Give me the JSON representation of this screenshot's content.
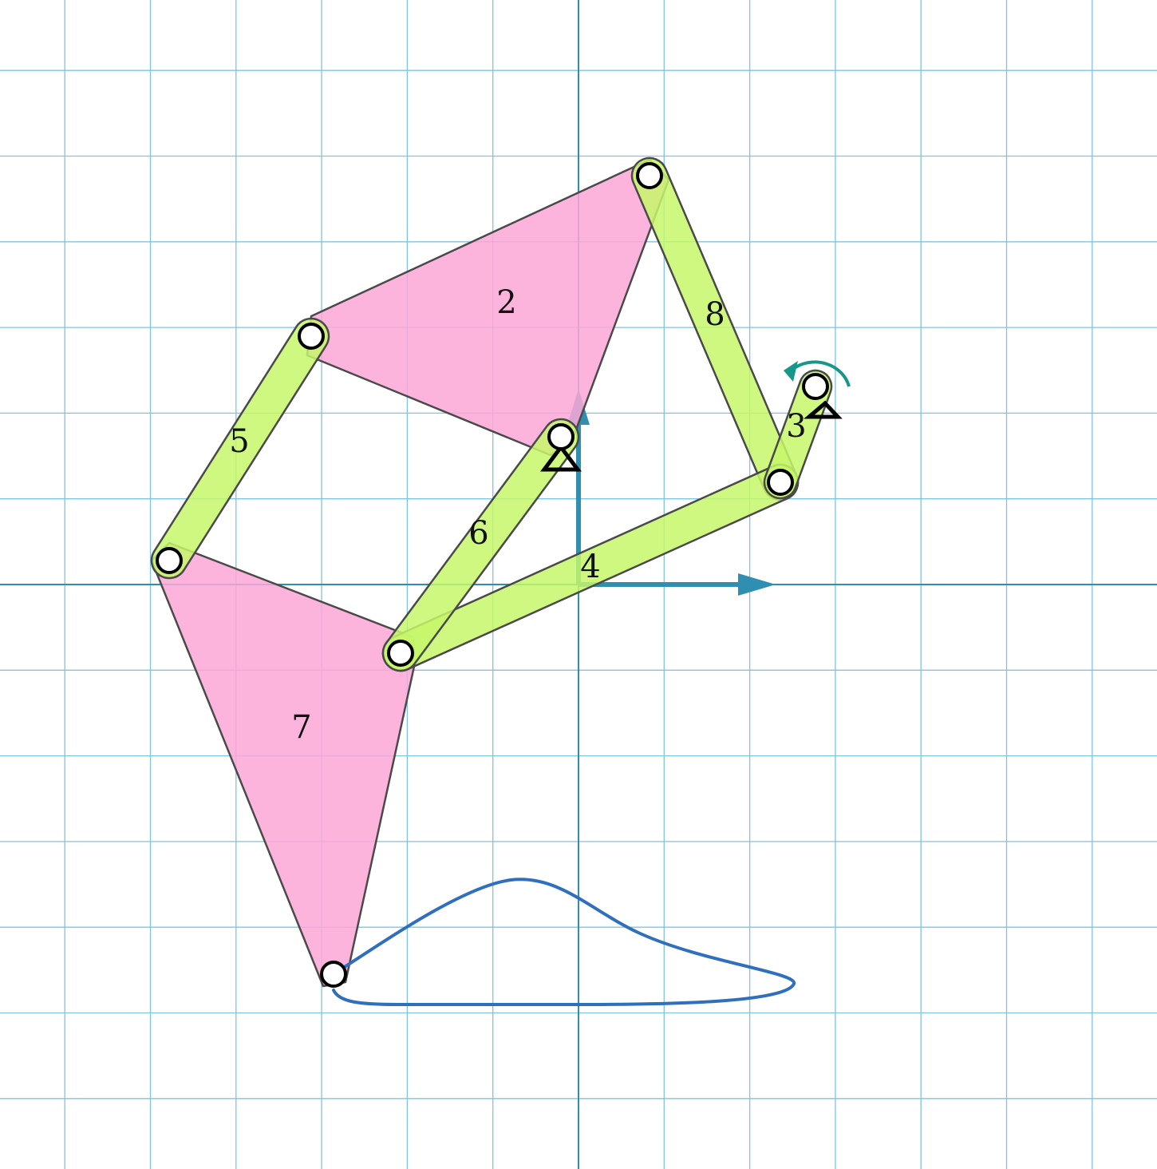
{
  "colors": {
    "background": "#ffffff",
    "grid": "#7fc4e0",
    "axis": "#2f8fb0",
    "binary_link_fill": "#c6f76a",
    "ternary_link_fill": "#fba7d7",
    "link_stroke": "#4a4a4a",
    "joint_fill": "#ffffff",
    "joint_stroke": "#000000",
    "coupler_curve": "#2f6fbd",
    "input_arrow": "#17968a",
    "ground_stroke": "#000000"
  },
  "links": [
    {
      "id": "link-2",
      "label": "2",
      "kind": "ternary"
    },
    {
      "id": "link-3",
      "label": "3",
      "kind": "binary"
    },
    {
      "id": "link-4",
      "label": "4",
      "kind": "binary"
    },
    {
      "id": "link-5",
      "label": "5",
      "kind": "binary"
    },
    {
      "id": "link-6",
      "label": "6",
      "kind": "binary"
    },
    {
      "id": "link-7",
      "label": "7",
      "kind": "ternary"
    },
    {
      "id": "link-8",
      "label": "8",
      "kind": "binary"
    }
  ],
  "icons": {
    "ground": "ground-pivot-triangle-icon",
    "input": "rotation-arrow-icon",
    "joint": "revolute-joint-icon"
  }
}
